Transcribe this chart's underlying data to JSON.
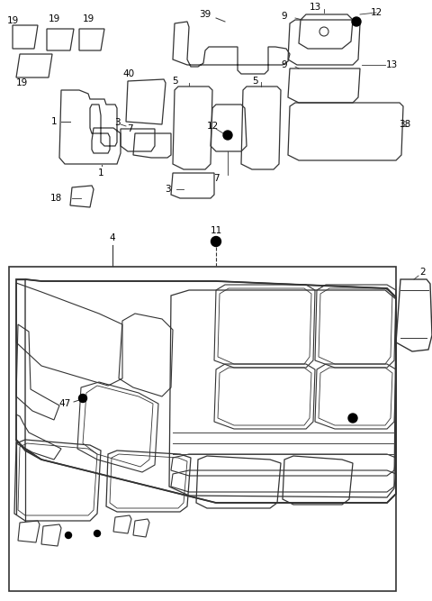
{
  "bg_color": "#ffffff",
  "line_color": "#333333",
  "fig_width": 4.8,
  "fig_height": 6.67,
  "dpi": 100
}
